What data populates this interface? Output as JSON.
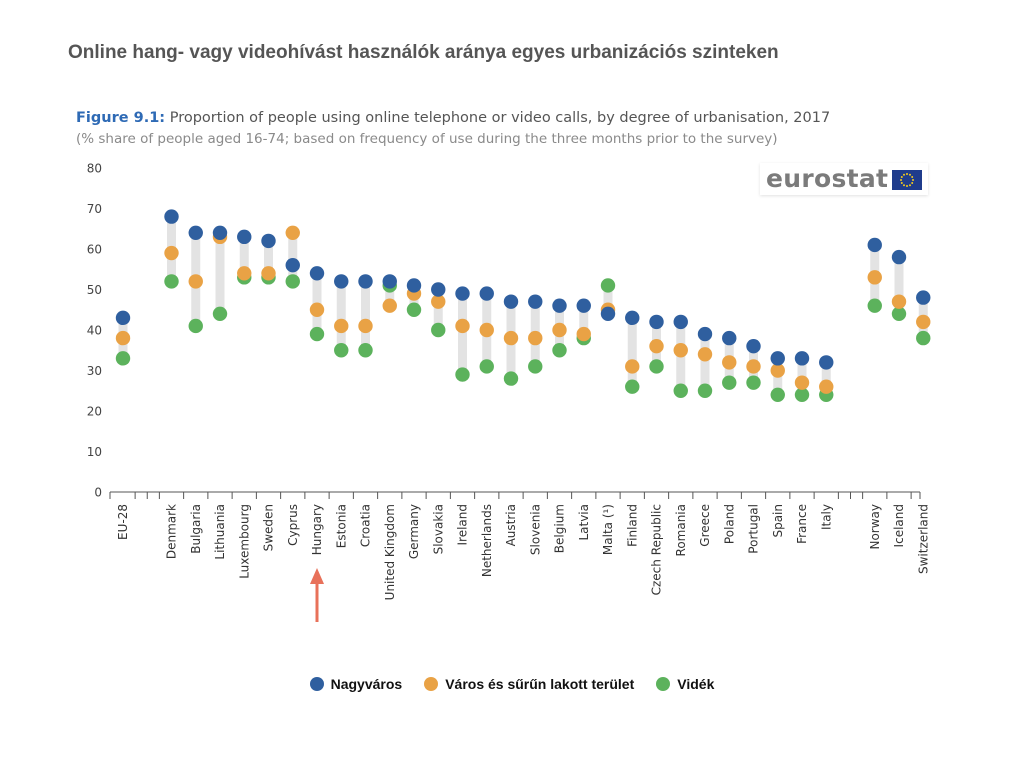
{
  "slide_title": "Online hang- vagy videohívást használók aránya egyes urbanizációs szinteken",
  "figure": {
    "number": "Figure 9.1:",
    "title": " Proportion of people using online telephone or video calls, by degree of urbanisation, 2017",
    "subtitle": "(% share of people aged 16-74; based on frequency of use during the three months prior to the survey)"
  },
  "logo": {
    "text": "eurostat",
    "flag": "eu-flag-icon"
  },
  "colors": {
    "blue": "#2f5f9f",
    "orange": "#e9a245",
    "green": "#5cb25c",
    "connector": "#e3e3e3",
    "axis": "#555555",
    "arrow": "#e8715a"
  },
  "highlight": {
    "category": "Hungary",
    "marker": "red-arrow-icon"
  },
  "legend": [
    {
      "label": "Nagyváros",
      "color": "#2f5f9f"
    },
    {
      "label": "Város és sűrűn lakott terület",
      "color": "#e9a245"
    },
    {
      "label": "Vidék",
      "color": "#5cb25c"
    }
  ],
  "chart_data": {
    "type": "scatter",
    "title": "Proportion of people using online telephone or video calls, by degree of urbanisation, 2017",
    "subtitle": "(% share of people aged 16-74; based on frequency of use during the three months prior to the survey)",
    "ylim": [
      0,
      80
    ],
    "yticks": [
      0,
      10,
      20,
      30,
      40,
      50,
      60,
      70,
      80
    ],
    "grid": false,
    "groups": [
      [
        "EU-28"
      ],
      [
        "Denmark",
        "Bulgaria",
        "Lithuania",
        "Luxembourg",
        "Sweden",
        "Cyprus",
        "Hungary",
        "Estonia",
        "Croatia",
        "United Kingdom",
        "Germany",
        "Slovakia",
        "Ireland",
        "Netherlands",
        "Austria",
        "Slovenia",
        "Belgium",
        "Latvia",
        "Malta (¹)",
        "Finland",
        "Czech Republic",
        "Romania",
        "Greece",
        "Poland",
        "Portugal",
        "Spain",
        "France",
        "Italy"
      ],
      [
        "Norway",
        "Iceland",
        "Switzerland"
      ]
    ],
    "categories": [
      "EU-28",
      "Denmark",
      "Bulgaria",
      "Lithuania",
      "Luxembourg",
      "Sweden",
      "Cyprus",
      "Hungary",
      "Estonia",
      "Croatia",
      "United Kingdom",
      "Germany",
      "Slovakia",
      "Ireland",
      "Netherlands",
      "Austria",
      "Slovenia",
      "Belgium",
      "Latvia",
      "Malta (¹)",
      "Finland",
      "Czech Republic",
      "Romania",
      "Greece",
      "Poland",
      "Portugal",
      "Spain",
      "France",
      "Italy",
      "Norway",
      "Iceland",
      "Switzerland"
    ],
    "series": [
      {
        "name": "Nagyváros",
        "color": "#2f5f9f",
        "values": [
          43,
          68,
          64,
          64,
          63,
          62,
          56,
          54,
          52,
          52,
          52,
          51,
          50,
          49,
          49,
          47,
          47,
          46,
          46,
          44,
          43,
          42,
          42,
          39,
          38,
          36,
          33,
          33,
          32,
          61,
          58,
          48
        ]
      },
      {
        "name": "Város és sűrűn lakott terület",
        "color": "#e9a245",
        "values": [
          38,
          59,
          52,
          63,
          54,
          54,
          64,
          45,
          41,
          41,
          46,
          49,
          47,
          41,
          40,
          38,
          38,
          40,
          39,
          45,
          31,
          36,
          35,
          34,
          32,
          31,
          30,
          27,
          26,
          53,
          47,
          42
        ]
      },
      {
        "name": "Vidék",
        "color": "#5cb25c",
        "values": [
          33,
          52,
          41,
          44,
          53,
          53,
          52,
          39,
          35,
          35,
          51,
          45,
          40,
          29,
          31,
          28,
          31,
          35,
          38,
          51,
          26,
          31,
          25,
          25,
          27,
          27,
          24,
          24,
          24,
          46,
          44,
          38
        ]
      }
    ]
  }
}
